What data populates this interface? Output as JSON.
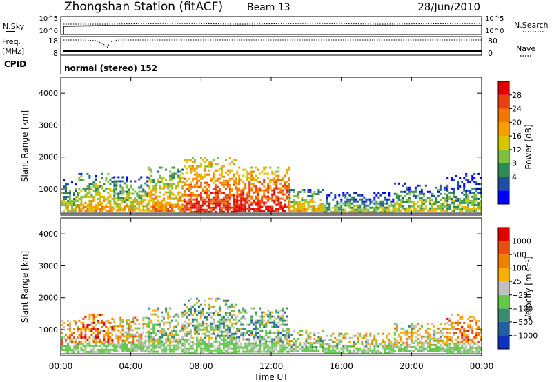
{
  "header": {
    "station": "Zhongshan Station (fitACF)",
    "beam": "Beam 13",
    "date": "28/Jun/2010"
  },
  "top_panels": {
    "nsky_label": "N.Sky",
    "nsearch_label": "N.Search",
    "nsky_ticks": [
      "10^5",
      "10^0"
    ],
    "nsearch_ticks": [
      "10^5",
      "10^0"
    ],
    "freq_label_1": "Freq.",
    "freq_label_2": "[MHz]",
    "freq_ticks": [
      "18",
      "8"
    ],
    "nave_label": "Nave",
    "nave_ticks": [
      "80",
      "0"
    ],
    "cpid_label": "CPID",
    "cpid_text": "normal (stereo) 152"
  },
  "colorbars": {
    "power": {
      "label": "Power [dB]",
      "ticks": [
        "28",
        "24",
        "20",
        "16",
        "12",
        "8",
        "4"
      ],
      "colors": [
        "#0000ff",
        "#1f4fa0",
        "#2e8b57",
        "#7fbf3f",
        "#d6c400",
        "#f5a000",
        "#f07800",
        "#e84010",
        "#e00000"
      ]
    },
    "velocity": {
      "label": "Velocity [m s⁻¹]",
      "ticks": [
        "1000",
        "500",
        "100",
        "25",
        "−25",
        "−100",
        "−500",
        "−1000"
      ],
      "colors": [
        "#1030c0",
        "#2060a0",
        "#3a8a70",
        "#66c84a",
        "#c0c0c0",
        "#f5b000",
        "#f08000",
        "#e85010",
        "#e00000"
      ]
    }
  },
  "x_axis": {
    "label": "Time UT",
    "ticks": [
      "00:00",
      "04:00",
      "08:00",
      "12:00",
      "16:00",
      "20:00",
      "00:00"
    ]
  },
  "chart_data": [
    {
      "type": "heatmap",
      "title": "Power",
      "xlabel": "Time UT",
      "ylabel": "Slant Range [km]",
      "xlim": [
        0,
        24
      ],
      "ylim": [
        180,
        4500
      ],
      "y_ticks": [
        1000,
        2000,
        3000,
        4000
      ],
      "color_label": "Power [dB]",
      "color_range": [
        0,
        32
      ],
      "regions": [
        {
          "t0": 0.0,
          "t1": 1.0,
          "r0": 300,
          "r1": 1300,
          "level": 10
        },
        {
          "t0": 1.0,
          "t1": 3.0,
          "r0": 300,
          "r1": 1500,
          "level": 14
        },
        {
          "t0": 3.0,
          "t1": 5.0,
          "r0": 300,
          "r1": 1400,
          "level": 12
        },
        {
          "t0": 5.0,
          "t1": 7.0,
          "r0": 300,
          "r1": 1700,
          "level": 16
        },
        {
          "t0": 7.0,
          "t1": 10.0,
          "r0": 300,
          "r1": 2000,
          "level": 22
        },
        {
          "t0": 10.0,
          "t1": 13.0,
          "r0": 300,
          "r1": 1700,
          "level": 24
        },
        {
          "t0": 13.0,
          "t1": 15.0,
          "r0": 300,
          "r1": 1000,
          "level": 14
        },
        {
          "t0": 15.0,
          "t1": 19.0,
          "r0": 300,
          "r1": 900,
          "level": 8
        },
        {
          "t0": 19.0,
          "t1": 22.0,
          "r0": 300,
          "r1": 1200,
          "level": 10
        },
        {
          "t0": 22.0,
          "t1": 24.0,
          "r0": 300,
          "r1": 1500,
          "level": 8
        }
      ]
    },
    {
      "type": "heatmap",
      "title": "Velocity",
      "xlabel": "Time UT",
      "ylabel": "Slant Range [km]",
      "xlim": [
        0,
        24
      ],
      "ylim": [
        180,
        4500
      ],
      "y_ticks": [
        1000,
        2000,
        3000,
        4000
      ],
      "color_label": "Velocity [m s⁻¹]",
      "color_range": [
        -1000,
        1000
      ],
      "regions": [
        {
          "t0": 0.0,
          "t1": 1.0,
          "r0": 300,
          "r1": 1300,
          "level": 300
        },
        {
          "t0": 1.0,
          "t1": 3.0,
          "r0": 300,
          "r1": 1500,
          "level": 500
        },
        {
          "t0": 3.0,
          "t1": 5.0,
          "r0": 300,
          "r1": 1400,
          "level": 200
        },
        {
          "t0": 5.0,
          "t1": 7.0,
          "r0": 300,
          "r1": 1700,
          "level": -100
        },
        {
          "t0": 7.0,
          "t1": 10.0,
          "r0": 300,
          "r1": 2000,
          "level": -200
        },
        {
          "t0": 10.0,
          "t1": 13.0,
          "r0": 300,
          "r1": 1700,
          "level": -250
        },
        {
          "t0": 13.0,
          "t1": 15.0,
          "r0": 300,
          "r1": 1000,
          "level": -100
        },
        {
          "t0": 15.0,
          "t1": 19.0,
          "r0": 300,
          "r1": 900,
          "level": 50
        },
        {
          "t0": 19.0,
          "t1": 22.0,
          "r0": 300,
          "r1": 1200,
          "level": 100
        },
        {
          "t0": 22.0,
          "t1": 24.0,
          "r0": 300,
          "r1": 1500,
          "level": 400
        }
      ]
    }
  ]
}
